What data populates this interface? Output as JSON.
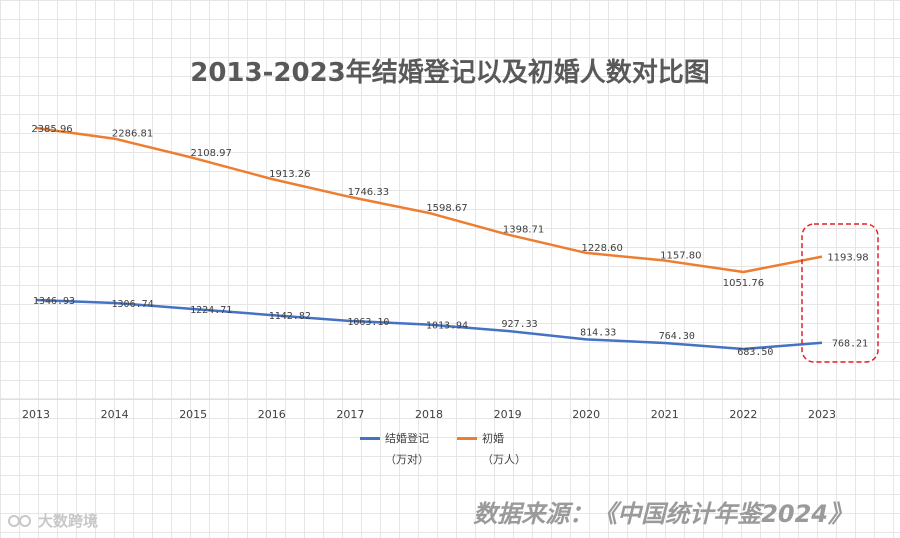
{
  "chart_data": {
    "type": "line",
    "title": "2013-2023年结婚登记以及初婚人数对比图",
    "x": [
      "2013",
      "2014",
      "2015",
      "2016",
      "2017",
      "2018",
      "2019",
      "2020",
      "2021",
      "2022",
      "2023"
    ],
    "series": [
      {
        "name": "结婚登记",
        "unit": "（万对）",
        "color": "#4472c4",
        "values": [
          1346.93,
          1306.74,
          1224.71,
          1142.82,
          1063.1,
          1013.94,
          927.33,
          814.33,
          764.3,
          683.5,
          768.21
        ],
        "labels": [
          "1346.93",
          "1306.74",
          "1224.71",
          "1142.82",
          "1063.10",
          "1013.94",
          "927.33",
          "814.33",
          "764.30",
          "683.50",
          "768.21"
        ]
      },
      {
        "name": "初婚",
        "unit": "（万人）",
        "color": "#ed7d31",
        "values": [
          2385.96,
          2286.81,
          2108.97,
          1913.26,
          1746.33,
          1598.67,
          1398.71,
          1228.6,
          1157.8,
          1051.76,
          1193.98
        ],
        "labels": [
          "2385.96",
          "2286.81",
          "2108.97",
          "1913.26",
          "1746.33",
          "1598.67",
          "1398.71",
          "1228.60",
          "1157.80",
          "1051.76",
          "1193.98"
        ]
      }
    ],
    "highlight": {
      "category": "2023",
      "color": "#e0242a"
    },
    "legend_position": "bottom",
    "grid": true
  },
  "source_text": "数据来源：《中国统计年鉴2024》",
  "watermark_text": "大数跨境"
}
